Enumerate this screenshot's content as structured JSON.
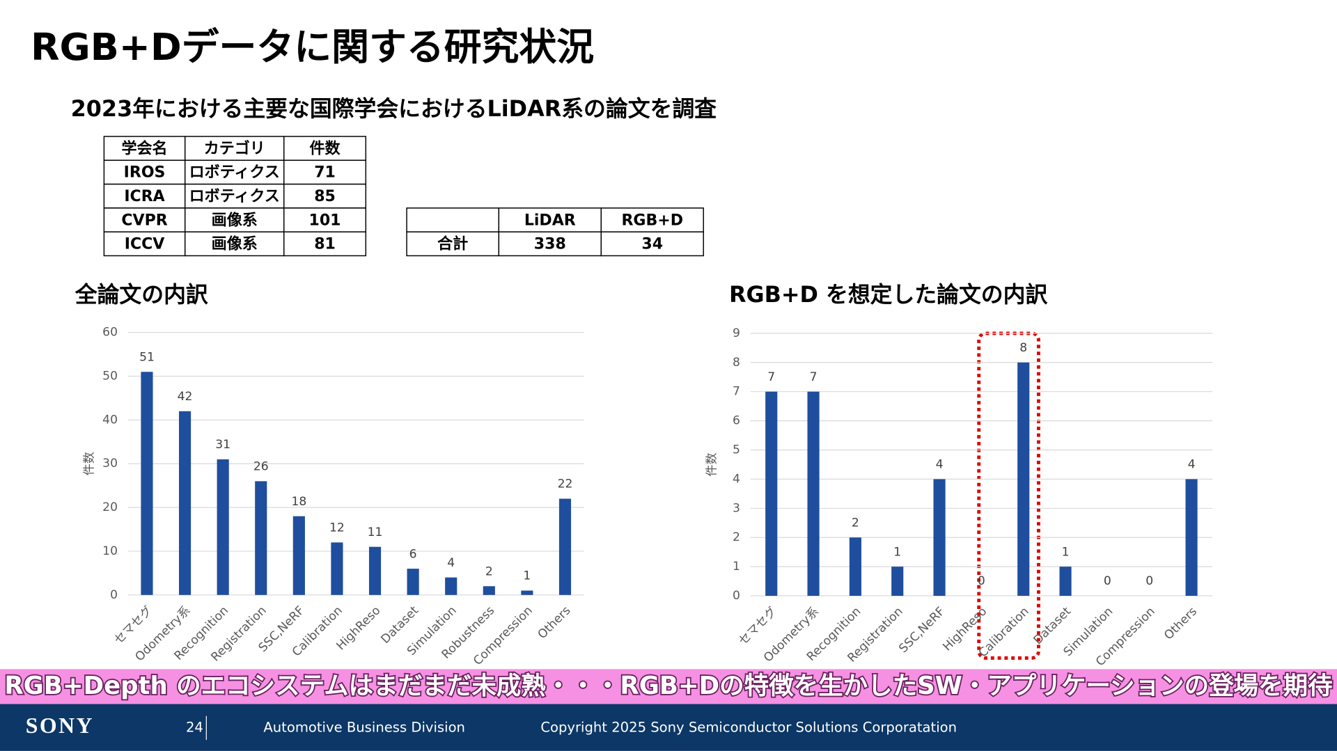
{
  "title": "RGB+Dデータに関する研究状況",
  "subtitle": "2023年における主要な国際学会におけるLiDAR系の論文を調査",
  "conference_table": {
    "header": [
      "学会名",
      "カテゴリ",
      "件数"
    ],
    "rows": [
      [
        "IROS",
        "ロボティクス",
        71
      ],
      [
        "ICRA",
        "ロボティクス",
        85
      ],
      [
        "CVPR",
        "画像系",
        101
      ],
      [
        "ICCV",
        "画像系",
        81
      ]
    ]
  },
  "total_table": {
    "header": [
      "LiDAR",
      "RGB+D"
    ],
    "row_label": "合計",
    "values": [
      338,
      34
    ]
  },
  "chart_data": [
    {
      "type": "bar",
      "title": "全論文の内訳",
      "y_label": "件数",
      "categories": [
        "セマセグ",
        "Odometry系",
        "Recognition",
        "Registration",
        "SSC,NeRF",
        "Calibration",
        "HighReso",
        "Dataset",
        "Simulation",
        "Robustness",
        "Compression",
        "Others"
      ],
      "values": [
        51,
        42,
        31,
        26,
        18,
        12,
        11,
        6,
        4,
        2,
        1,
        22
      ],
      "color": "#1f4e9e",
      "ylim": [
        0,
        60
      ],
      "yticks": [
        0,
        10,
        20,
        30,
        40,
        50,
        60
      ],
      "grid": true
    },
    {
      "type": "bar",
      "title": "RGB+D を想定した論文の内訳",
      "y_label": "件数",
      "categories": [
        "セマセグ",
        "Odometry系",
        "Recognition",
        "Registration",
        "SSC,NeRF",
        "HighReso",
        "Calibration",
        "Dataset",
        "Simulation",
        "Compression",
        "Others"
      ],
      "values": [
        7,
        7,
        2,
        1,
        4,
        0,
        8,
        1,
        0,
        0,
        4
      ],
      "color": "#1f4e9e",
      "ylim": [
        0,
        9
      ],
      "yticks": [
        0,
        1,
        2,
        3,
        4,
        5,
        6,
        7,
        8,
        9
      ],
      "grid": true
    }
  ],
  "banner": "RGB+Depth のエコシステムはまだまだ未成熟・・・RGB+Dの特徴を生かしたSW・アプリケーションの登場を期待",
  "footer": {
    "brand": "SONY",
    "page": 24,
    "division": "Automotive Business Division",
    "copyright": "Copyright 2025 Sony Semiconductor Solutions Corporatation"
  }
}
